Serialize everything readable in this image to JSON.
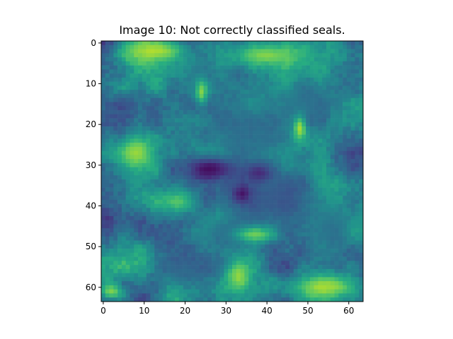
{
  "chart_data": {
    "type": "heatmap",
    "title": "Image 10: Not correctly classified seals.",
    "xlabel": "",
    "ylabel": "",
    "rows": 64,
    "cols": 64,
    "xlim": [
      -0.5,
      63.5
    ],
    "ylim": [
      63.5,
      -0.5
    ],
    "xticks": [
      0,
      10,
      20,
      30,
      40,
      50,
      60
    ],
    "yticks": [
      0,
      10,
      20,
      30,
      40,
      50,
      60
    ],
    "colormap": "viridis",
    "grid": false,
    "description_of_values": "64x64 grayscale image patch rendered with viridis colormap; values 0 (dark purple) to 1 (yellow)",
    "low_regions": [
      {
        "cx": 26,
        "cy": 31,
        "rx": 6,
        "ry": 3,
        "v": 0.02
      },
      {
        "cx": 34,
        "cy": 37,
        "rx": 2,
        "ry": 2,
        "v": 0.05
      },
      {
        "cx": 38,
        "cy": 32,
        "rx": 3,
        "ry": 2,
        "v": 0.12
      }
    ],
    "blue_regions": [
      {
        "cx": 35,
        "cy": 22,
        "rx": 12,
        "ry": 10,
        "v": 0.3
      },
      {
        "cx": 43,
        "cy": 38,
        "rx": 12,
        "ry": 8,
        "v": 0.28
      },
      {
        "cx": 30,
        "cy": 47,
        "rx": 8,
        "ry": 5,
        "v": 0.33
      },
      {
        "cx": 50,
        "cy": 14,
        "rx": 8,
        "ry": 6,
        "v": 0.33
      },
      {
        "cx": 24,
        "cy": 8,
        "rx": 5,
        "ry": 4,
        "v": 0.38
      },
      {
        "cx": 56,
        "cy": 46,
        "rx": 6,
        "ry": 6,
        "v": 0.35
      },
      {
        "cx": 20,
        "cy": 56,
        "rx": 6,
        "ry": 4,
        "v": 0.35
      }
    ],
    "bright_regions": [
      {
        "cx": 8,
        "cy": 27,
        "rx": 5,
        "ry": 5,
        "v": 0.92
      },
      {
        "cx": 13,
        "cy": 2,
        "rx": 7,
        "ry": 3,
        "v": 0.95
      },
      {
        "cx": 48,
        "cy": 21,
        "rx": 1.5,
        "ry": 3,
        "v": 0.95
      },
      {
        "cx": 40,
        "cy": 3,
        "rx": 8,
        "ry": 3,
        "v": 0.9
      },
      {
        "cx": 54,
        "cy": 60,
        "rx": 8,
        "ry": 3,
        "v": 0.92
      },
      {
        "cx": 33,
        "cy": 57,
        "rx": 3,
        "ry": 4,
        "v": 0.9
      },
      {
        "cx": 24,
        "cy": 12,
        "rx": 1.5,
        "ry": 3,
        "v": 0.88
      },
      {
        "cx": 2,
        "cy": 61,
        "rx": 3,
        "ry": 2,
        "v": 0.88
      },
      {
        "cx": 37,
        "cy": 47,
        "rx": 5,
        "ry": 2,
        "v": 0.85
      },
      {
        "cx": 18,
        "cy": 39,
        "rx": 5,
        "ry": 3,
        "v": 0.8
      }
    ]
  }
}
